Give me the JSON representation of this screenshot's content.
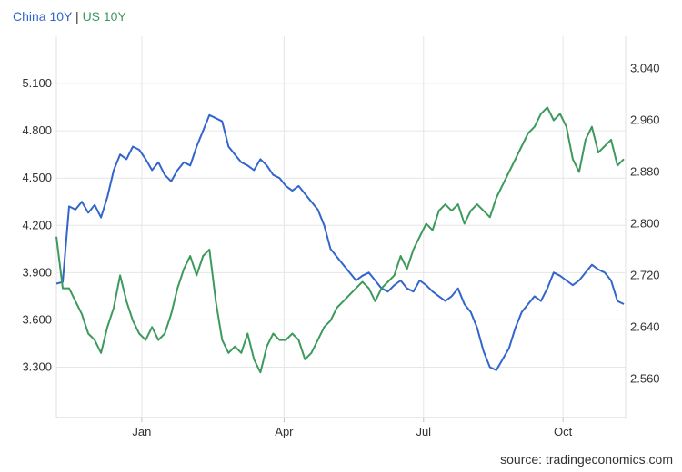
{
  "legend": {
    "series_a": "China 10Y",
    "separator": "|",
    "series_b": "US 10Y"
  },
  "source": "source: tradingeconomics.com",
  "colors": {
    "china": "#3366cc",
    "us": "#3d9a5c",
    "grid": "#e6e6e6",
    "text": "#333333"
  },
  "chart_data": {
    "type": "line",
    "x_ticks": [
      "Jan",
      "Apr",
      "Jul",
      "Oct"
    ],
    "left_axis": {
      "ticks": [
        "5.100",
        "4.800",
        "4.500",
        "4.200",
        "3.900",
        "3.600",
        "3.300"
      ],
      "range": [
        2.98,
        5.4
      ]
    },
    "right_axis": {
      "ticks": [
        "3.040",
        "2.960",
        "2.880",
        "2.800",
        "2.720",
        "2.640",
        "2.560"
      ],
      "range": [
        2.5,
        3.09
      ]
    },
    "grid": true,
    "series": [
      {
        "name": "China 10Y",
        "axis": "left",
        "color": "#3366cc",
        "values": [
          3.83,
          3.84,
          4.32,
          4.3,
          4.35,
          4.28,
          4.33,
          4.25,
          4.38,
          4.55,
          4.65,
          4.62,
          4.7,
          4.68,
          4.62,
          4.55,
          4.6,
          4.52,
          4.48,
          4.55,
          4.6,
          4.58,
          4.7,
          4.8,
          4.9,
          4.88,
          4.86,
          4.7,
          4.65,
          4.6,
          4.58,
          4.55,
          4.62,
          4.58,
          4.52,
          4.5,
          4.45,
          4.42,
          4.45,
          4.4,
          4.35,
          4.3,
          4.2,
          4.05,
          4.0,
          3.95,
          3.9,
          3.85,
          3.88,
          3.9,
          3.85,
          3.8,
          3.78,
          3.82,
          3.85,
          3.8,
          3.78,
          3.85,
          3.82,
          3.78,
          3.75,
          3.72,
          3.75,
          3.8,
          3.7,
          3.65,
          3.55,
          3.4,
          3.3,
          3.28,
          3.35,
          3.42,
          3.55,
          3.65,
          3.7,
          3.75,
          3.72,
          3.8,
          3.9,
          3.88,
          3.85,
          3.82,
          3.85,
          3.9,
          3.95,
          3.92,
          3.9,
          3.85,
          3.72,
          3.7
        ]
      },
      {
        "name": "US 10Y",
        "axis": "right",
        "color": "#3d9a5c",
        "values": [
          2.78,
          2.7,
          2.7,
          2.68,
          2.66,
          2.63,
          2.62,
          2.6,
          2.64,
          2.67,
          2.72,
          2.68,
          2.65,
          2.63,
          2.62,
          2.64,
          2.62,
          2.63,
          2.66,
          2.7,
          2.73,
          2.75,
          2.72,
          2.75,
          2.76,
          2.68,
          2.62,
          2.6,
          2.61,
          2.6,
          2.63,
          2.59,
          2.57,
          2.61,
          2.63,
          2.62,
          2.62,
          2.63,
          2.62,
          2.59,
          2.6,
          2.62,
          2.64,
          2.65,
          2.67,
          2.68,
          2.69,
          2.7,
          2.71,
          2.7,
          2.68,
          2.7,
          2.71,
          2.72,
          2.75,
          2.73,
          2.76,
          2.78,
          2.8,
          2.79,
          2.82,
          2.83,
          2.82,
          2.83,
          2.8,
          2.82,
          2.83,
          2.82,
          2.81,
          2.84,
          2.86,
          2.88,
          2.9,
          2.92,
          2.94,
          2.95,
          2.97,
          2.98,
          2.96,
          2.97,
          2.95,
          2.9,
          2.88,
          2.93,
          2.95,
          2.91,
          2.92,
          2.93,
          2.89,
          2.9
        ]
      }
    ]
  }
}
